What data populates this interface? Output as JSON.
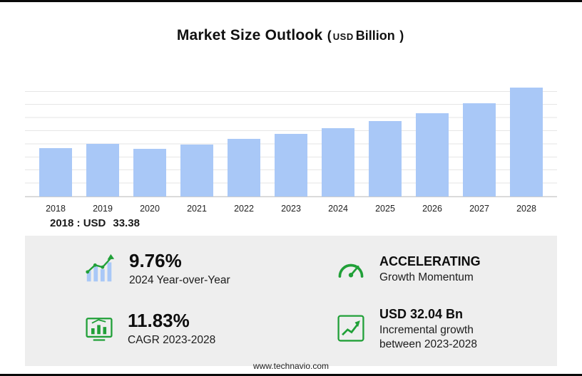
{
  "colors": {
    "accent_green": "#21a038",
    "bar_blue": "#a9c8f7",
    "panel_bg": "#eeeeee",
    "grid_line": "#e6e6e6"
  },
  "title": {
    "main": "Market Size Outlook",
    "open_paren": "(",
    "currency": "USD",
    "unit": "Billion",
    "close_paren": ")"
  },
  "chart_data": {
    "type": "bar",
    "title": "Market Size Outlook",
    "subtitle": "USD Billion",
    "categories": [
      "2018",
      "2019",
      "2020",
      "2021",
      "2022",
      "2023",
      "2024",
      "2025",
      "2026",
      "2027",
      "2028"
    ],
    "values": [
      33.38,
      36.3,
      32.6,
      35.4,
      39.3,
      42.8,
      47.0,
      51.5,
      57.0,
      63.9,
      74.8
    ],
    "xlabel": "",
    "ylabel": "",
    "ylim": [
      0,
      80
    ],
    "grid": true,
    "legend": false,
    "bar_color": "#a9c8f7",
    "annotation": "2018 : USD  33.38"
  },
  "annotation": {
    "label": "2018 : USD",
    "value": "33.38"
  },
  "stats": [
    {
      "icon": "yoy-bars-icon",
      "value": "9.76%",
      "label": "2024 Year-over-Year"
    },
    {
      "icon": "speedometer-icon",
      "value": "ACCELERATING",
      "label": "Growth Momentum"
    },
    {
      "icon": "cagr-chart-icon",
      "value": "11.83%",
      "label": "CAGR 2023-2028"
    },
    {
      "icon": "incremental-growth-icon",
      "value": "USD 32.04 Bn",
      "label": "Incremental growth between 2023-2028"
    }
  ],
  "footer": {
    "url": "www.technavio.com"
  }
}
